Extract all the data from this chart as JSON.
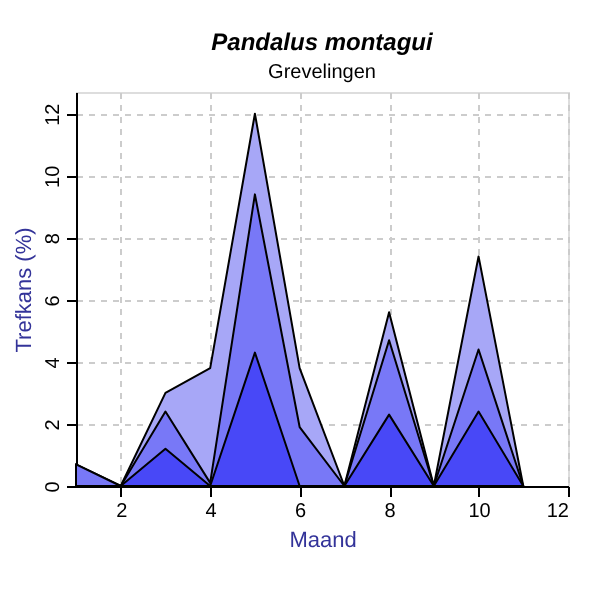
{
  "chart_data": {
    "type": "area",
    "title": "Pandalus montagui",
    "subtitle": "Grevelingen",
    "xlabel": "Maand",
    "ylabel": "Trefkans (%)",
    "x": [
      1,
      2,
      3,
      4,
      5,
      6,
      7,
      8,
      9,
      10,
      11
    ],
    "series": [
      {
        "color": "#a7a7f7",
        "values": [
          0.7,
          0,
          3.0,
          3.8,
          12,
          3.8,
          0,
          5.6,
          0,
          7.4,
          0
        ]
      },
      {
        "color": "#7878f7",
        "values": [
          0.7,
          0,
          2.4,
          0.1,
          9.4,
          1.9,
          0,
          4.7,
          0,
          4.4,
          0
        ]
      },
      {
        "color": "#4848f7",
        "values": [
          0,
          0,
          1.2,
          0,
          4.3,
          0,
          0,
          2.3,
          0,
          2.4,
          0
        ]
      }
    ],
    "xlim": [
      1,
      12
    ],
    "xticks": [
      2,
      4,
      6,
      8,
      10,
      12
    ],
    "ylim": [
      0,
      12.7
    ],
    "yticks": [
      0,
      2,
      4,
      6,
      8,
      10,
      12
    ],
    "grid": true
  }
}
